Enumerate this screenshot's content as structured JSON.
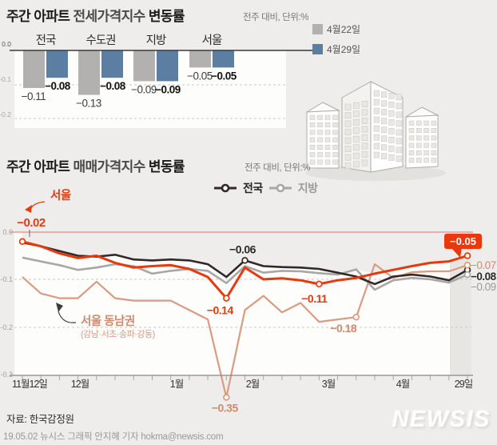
{
  "ui": {
    "jeonse": {
      "title_parts": [
        "주간 아파트 ",
        "전세가격지수 ",
        "변동률"
      ],
      "note": "전주 대비, 단위:%"
    },
    "maemae": {
      "title_parts": [
        "주간 아파트 ",
        "매매가격지수 ",
        "변동률"
      ],
      "note": "전주 대비, 단위:%"
    },
    "footer": {
      "source": "자료: 한국감정원",
      "credit": "19.05.02 뉴시스 그래픽 안지혜 기자 hokma@newsis.com",
      "logo": "NEWSIS"
    }
  },
  "chart_data": [
    {
      "type": "bar",
      "title": "주간 아파트 전세가격지수 변동률",
      "subtitle": "전주 대비, 단위:%",
      "categories": [
        "전국",
        "수도권",
        "지방",
        "서울"
      ],
      "series": [
        {
          "name": "4월22일",
          "color": "#b3b1af",
          "values": [
            -0.11,
            -0.13,
            -0.09,
            -0.05
          ]
        },
        {
          "name": "4월29일",
          "color": "#5c7ea3",
          "values": [
            -0.08,
            -0.08,
            -0.09,
            -0.05
          ]
        }
      ],
      "ylim": [
        -0.2,
        0
      ],
      "yticks": [
        "0.0",
        "-0.1",
        "-0.2"
      ],
      "grid": "dashed"
    },
    {
      "type": "line",
      "title": "주간 아파트 매매가격지수 변동률",
      "subtitle": "전주 대비, 단위:%",
      "x_ticks": [
        "11월12일",
        "12월",
        "1월",
        "2월",
        "3월",
        "4월",
        "29일"
      ],
      "yticks": [
        "0.0",
        "-0.1",
        "-0.2",
        "-0.3"
      ],
      "ylim": [
        -0.35,
        0
      ],
      "n_points": 25,
      "series": [
        {
          "name": "전국",
          "color": "#332a27",
          "width": 2.6,
          "values": [
            -0.022,
            -0.03,
            -0.04,
            -0.05,
            -0.052,
            -0.048,
            -0.058,
            -0.06,
            -0.058,
            -0.06,
            -0.068,
            -0.095,
            -0.06,
            -0.072,
            -0.074,
            -0.075,
            -0.078,
            -0.086,
            -0.094,
            -0.11,
            -0.094,
            -0.09,
            -0.094,
            -0.102,
            -0.08
          ]
        },
        {
          "name": "지방",
          "color": "#a9a7a5",
          "width": 2.6,
          "values": [
            -0.054,
            -0.062,
            -0.07,
            -0.08,
            -0.075,
            -0.068,
            -0.072,
            -0.088,
            -0.082,
            -0.078,
            -0.082,
            -0.108,
            -0.072,
            -0.086,
            -0.082,
            -0.083,
            -0.087,
            -0.09,
            -0.079,
            -0.122,
            -0.102,
            -0.097,
            -0.1,
            -0.107,
            -0.09
          ]
        },
        {
          "name": "서울",
          "color": "#e8380d",
          "width": 3,
          "values": [
            -0.02,
            -0.03,
            -0.045,
            -0.055,
            -0.05,
            -0.065,
            -0.075,
            -0.072,
            -0.07,
            -0.078,
            -0.095,
            -0.14,
            -0.075,
            -0.1,
            -0.098,
            -0.102,
            -0.11,
            -0.102,
            -0.097,
            -0.088,
            -0.08,
            -0.072,
            -0.065,
            -0.062,
            -0.05
          ]
        },
        {
          "name": "서울 동남권",
          "color": "#d99b82",
          "width": 2.2,
          "values": [
            -0.095,
            -0.13,
            -0.14,
            -0.14,
            -0.105,
            -0.14,
            -0.145,
            -0.145,
            -0.145,
            -0.165,
            -0.185,
            -0.35,
            -0.165,
            -0.135,
            -0.17,
            -0.15,
            -0.19,
            -0.185,
            -0.18,
            -0.068,
            -0.097,
            -0.085,
            -0.083,
            -0.083,
            -0.07
          ]
        }
      ],
      "markers": [
        [
          "서울",
          0
        ],
        [
          "서울",
          11
        ],
        [
          "서울",
          16
        ],
        [
          "서울",
          24
        ],
        [
          "전국",
          12
        ],
        [
          "전국",
          24
        ],
        [
          "지방",
          24
        ],
        [
          "서울 동남권",
          11
        ],
        [
          "서울 동남권",
          18
        ],
        [
          "서울 동남권",
          24
        ]
      ],
      "annotations": {
        "series_callout": "서울",
        "start_label": "−0.02",
        "region_callout": "서울 동남권",
        "region_callout_sub": "(강남·서초·송파·강동)",
        "point_labels": [
          {
            "series": "전국",
            "index": 12,
            "text": "−0.06"
          },
          {
            "series": "서울",
            "index": 11,
            "text": "−0.14"
          },
          {
            "series": "서울",
            "index": 16,
            "text": "−0.11"
          },
          {
            "series": "서울 동남권",
            "index": 18,
            "text": "−0.18"
          },
          {
            "series": "서울 동남권",
            "index": 11,
            "text": "−0.35"
          }
        ],
        "end_labels": [
          {
            "series": "서울",
            "text": "−0.05",
            "badge": true
          },
          {
            "series": "서울 동남권",
            "text": "−0.07"
          },
          {
            "series": "전국",
            "text": "−0.08"
          },
          {
            "series": "지방",
            "text": "−0.09"
          }
        ]
      },
      "zero_line_color": "#ea8b80",
      "badge_color": "#e8380d"
    }
  ]
}
